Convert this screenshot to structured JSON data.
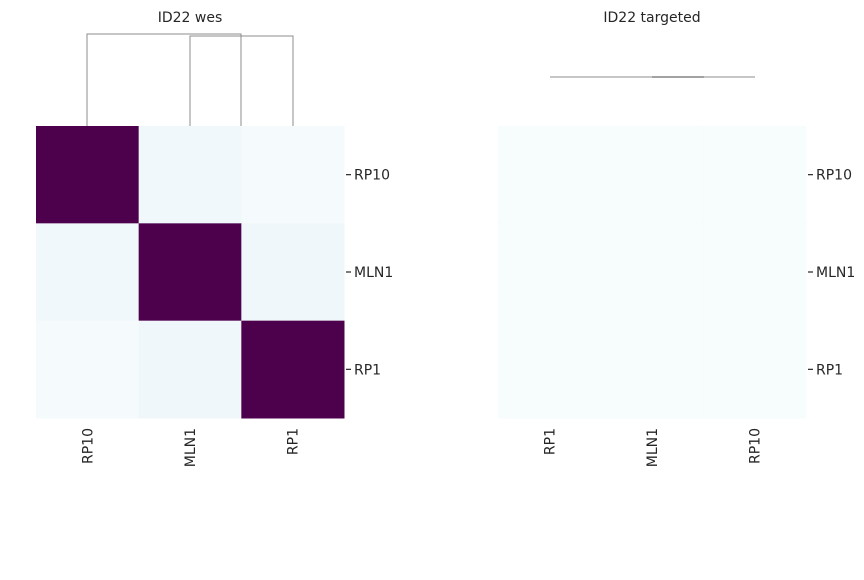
{
  "chart_data": [
    {
      "type": "heatmap",
      "title": "ID22 wes",
      "rows": [
        "RP10",
        "MLN1",
        "RP1"
      ],
      "columns": [
        "RP10",
        "MLN1",
        "RP1"
      ],
      "values": [
        [
          1.0,
          0.03,
          0.01
        ],
        [
          0.03,
          1.0,
          0.04
        ],
        [
          0.01,
          0.04,
          1.0
        ]
      ],
      "dendrogram": "columns",
      "colormap": [
        "#f7fcfd",
        "#e0ecf4",
        "#bfd3e6",
        "#9ebcda",
        "#8c96c6",
        "#8c6bb1",
        "#88419d",
        "#810f7c",
        "#4d004b"
      ]
    },
    {
      "type": "heatmap",
      "title": "ID22 targeted",
      "rows": [
        "RP10",
        "MLN1",
        "RP1"
      ],
      "columns": [
        "RP1",
        "MLN1",
        "RP10"
      ],
      "values": [
        [
          0.0,
          0.0,
          0.0
        ],
        [
          0.0,
          0.0,
          0.0
        ],
        [
          0.0,
          0.0,
          0.0
        ]
      ],
      "dendrogram": "columns",
      "colormap": [
        "#f7fcfd",
        "#e0ecf4",
        "#bfd3e6",
        "#9ebcda",
        "#8c96c6",
        "#8c6bb1",
        "#88419d",
        "#810f7c",
        "#4d004b"
      ]
    }
  ]
}
